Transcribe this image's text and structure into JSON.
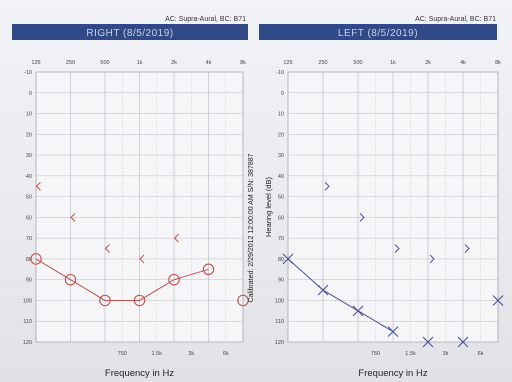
{
  "chart_data": [
    {
      "type": "scatter",
      "title": "RIGHT  (8/5/2019)",
      "header_note": "AC: Supra-Aural, BC: B71",
      "xlabel": "Frequency in Hz",
      "ylabel": "",
      "x_top_ticks": [
        "125",
        "250",
        "500",
        "1k",
        "2k",
        "4k",
        "8k"
      ],
      "x_bottom_ticks": [
        "750",
        "1.5k",
        "3k",
        "6k"
      ],
      "y_ticks": [
        -10,
        0,
        10,
        20,
        30,
        40,
        50,
        60,
        70,
        80,
        90,
        100,
        110,
        120
      ],
      "ylim": [
        -10,
        120
      ],
      "y_inverted": true,
      "series": [
        {
          "marker": "circle",
          "color": "#c0504d",
          "connected": true,
          "x": [
            "125",
            "250",
            "500",
            "1k",
            "2k",
            "4k"
          ],
          "y": [
            80,
            90,
            100,
            100,
            90,
            85
          ]
        },
        {
          "marker": "circle",
          "color": "#c0504d",
          "connected": false,
          "x": [
            "8k"
          ],
          "y": [
            100
          ]
        },
        {
          "marker": "bracket-left",
          "color": "#c0504d",
          "connected": false,
          "x": [
            "250",
            "500",
            "1k",
            "2k",
            "4k"
          ],
          "y": [
            45,
            60,
            75,
            80,
            70
          ]
        }
      ]
    },
    {
      "type": "scatter",
      "title": "LEFT  (8/5/2019)",
      "header_note": "AC: Supra-Aural, BC: B71",
      "xlabel": "Frequency in Hz",
      "ylabel": "Hearing level (dB)",
      "x_top_ticks": [
        "125",
        "250",
        "500",
        "1k",
        "2k",
        "4k",
        "8k"
      ],
      "x_bottom_ticks": [
        "750",
        "1.5k",
        "3k",
        "6k"
      ],
      "y_ticks": [
        -10,
        0,
        10,
        20,
        30,
        40,
        50,
        60,
        70,
        80,
        90,
        100,
        110,
        120
      ],
      "ylim": [
        -10,
        120
      ],
      "y_inverted": true,
      "series": [
        {
          "marker": "x",
          "color": "#4a4f9a",
          "connected": true,
          "x": [
            "125",
            "250",
            "500",
            "1k"
          ],
          "y": [
            80,
            95,
            105,
            115
          ]
        },
        {
          "marker": "x",
          "color": "#4a4f9a",
          "connected": false,
          "x": [
            "2k",
            "4k",
            "8k"
          ],
          "y": [
            120,
            120,
            100
          ]
        },
        {
          "marker": "bracket-right",
          "color": "#4a4f9a",
          "connected": false,
          "x": [
            "250",
            "500",
            "1k",
            "2k",
            "4k"
          ],
          "y": [
            45,
            60,
            75,
            80,
            75
          ]
        }
      ]
    }
  ],
  "calibration_note": "Calibrated: 2/29/2012 12:00:00 AM  S/N: 387887"
}
